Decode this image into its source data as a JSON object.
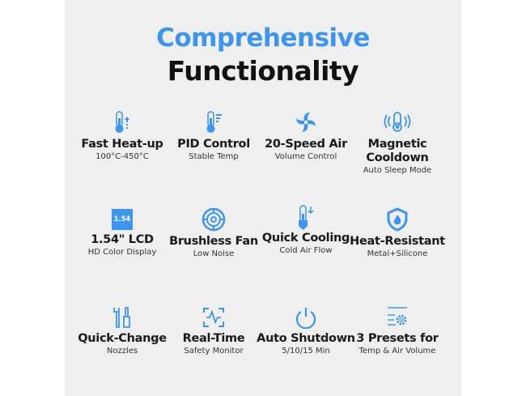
{
  "title_line1": "Comprehensive",
  "title_line2": "Functionality",
  "accent_color": "#3d95ee",
  "features": [
    {
      "icon": "thermometer-up-icon",
      "title": "Fast Heat-up",
      "subtitle": "100°C-450°C"
    },
    {
      "icon": "thermometer-gauge-icon",
      "title": "PID Control",
      "subtitle": "Stable Temp"
    },
    {
      "icon": "fan-blades-icon",
      "title": "20-Speed Air",
      "subtitle": "Volume Control"
    },
    {
      "icon": "thermometer-waves-icon",
      "title": "Magnetic",
      "title2": "Cooldown",
      "subtitle": "Auto Sleep Mode"
    },
    {
      "icon": "lcd-display-icon",
      "icon_text": "1.54",
      "title": "1.54\" LCD",
      "subtitle": "HD Color Display"
    },
    {
      "icon": "brushless-fan-icon",
      "title": "Brushless Fan",
      "subtitle": "Low Noise"
    },
    {
      "icon": "thermometer-down-icon",
      "title": "Quick Cooling",
      "subtitle": "Cold Air Flow"
    },
    {
      "icon": "shield-flame-icon",
      "title": "Heat-Resistant",
      "subtitle": "Metal+Silicone"
    },
    {
      "icon": "wrench-screwdriver-icon",
      "title": "Quick-Change",
      "subtitle": "Nozzles"
    },
    {
      "icon": "monitor-scan-icon",
      "title": "Real-Time",
      "subtitle": "Safety Monitor"
    },
    {
      "icon": "power-icon",
      "title": "Auto Shutdown",
      "subtitle": "5/10/15 Min"
    },
    {
      "icon": "settings-presets-icon",
      "title": "3 Presets for",
      "subtitle": "Temp & Air Volume"
    }
  ]
}
